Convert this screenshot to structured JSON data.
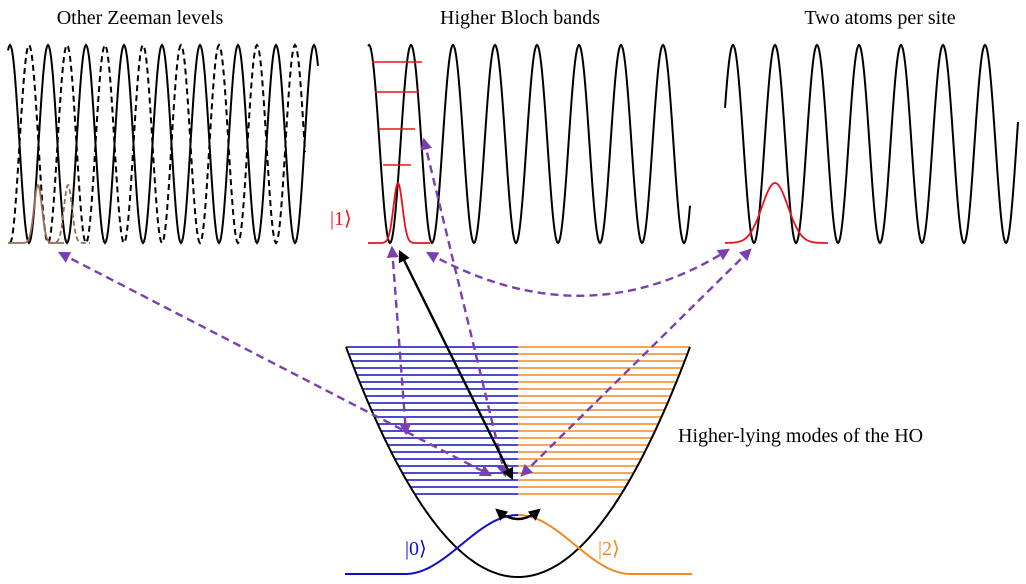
{
  "panels": {
    "zeeman": {
      "title": "Other Zeeman levels"
    },
    "bloch": {
      "title": "Higher Bloch bands",
      "state_label": "|1⟩"
    },
    "two_atoms": {
      "title": "Two atoms per site"
    }
  },
  "trap": {
    "caption": "Higher-lying modes of the HO",
    "state0_label": "|0⟩",
    "state2_label": "|2⟩",
    "left_mode_count": 22,
    "right_mode_count": 22
  },
  "colors": {
    "black": "#000000",
    "blue": "#1010c0",
    "orange": "#f08a24",
    "red": "#e8141e",
    "brown": "#9b6a55",
    "purple": "#7b3fb0"
  }
}
